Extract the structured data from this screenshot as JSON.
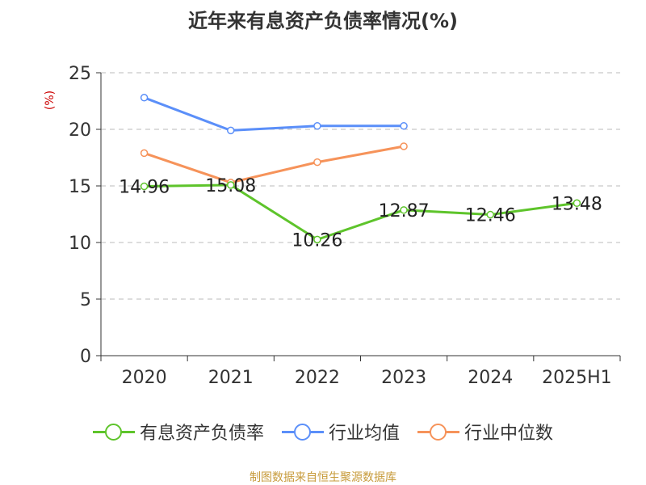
{
  "chart_data": {
    "type": "line",
    "title": "近年来有息资产负债率情况(%)",
    "y_unit": "(%)",
    "categories": [
      "2020",
      "2021",
      "2022",
      "2023",
      "2024",
      "2025H1"
    ],
    "y_ticks": [
      "0",
      "5",
      "10",
      "15",
      "20",
      "25"
    ],
    "ylim": [
      0,
      25
    ],
    "grid": true,
    "legend_position": "bottom",
    "series": [
      {
        "name": "有息资产负债率",
        "color": "#5ec42b",
        "values": [
          14.96,
          15.08,
          10.26,
          12.87,
          12.46,
          13.48
        ],
        "labels": [
          "14.96",
          "15.08",
          "10.26",
          "12.87",
          "12.46",
          "13.48"
        ]
      },
      {
        "name": "行业均值",
        "color": "#5b8ff9",
        "values": [
          22.8,
          19.9,
          20.3,
          20.3,
          null,
          null
        ]
      },
      {
        "name": "行业中位数",
        "color": "#f6935a",
        "values": [
          17.9,
          15.3,
          17.1,
          18.5,
          null,
          null
        ]
      }
    ]
  },
  "footer": "制图数据来自恒生聚源数据库"
}
